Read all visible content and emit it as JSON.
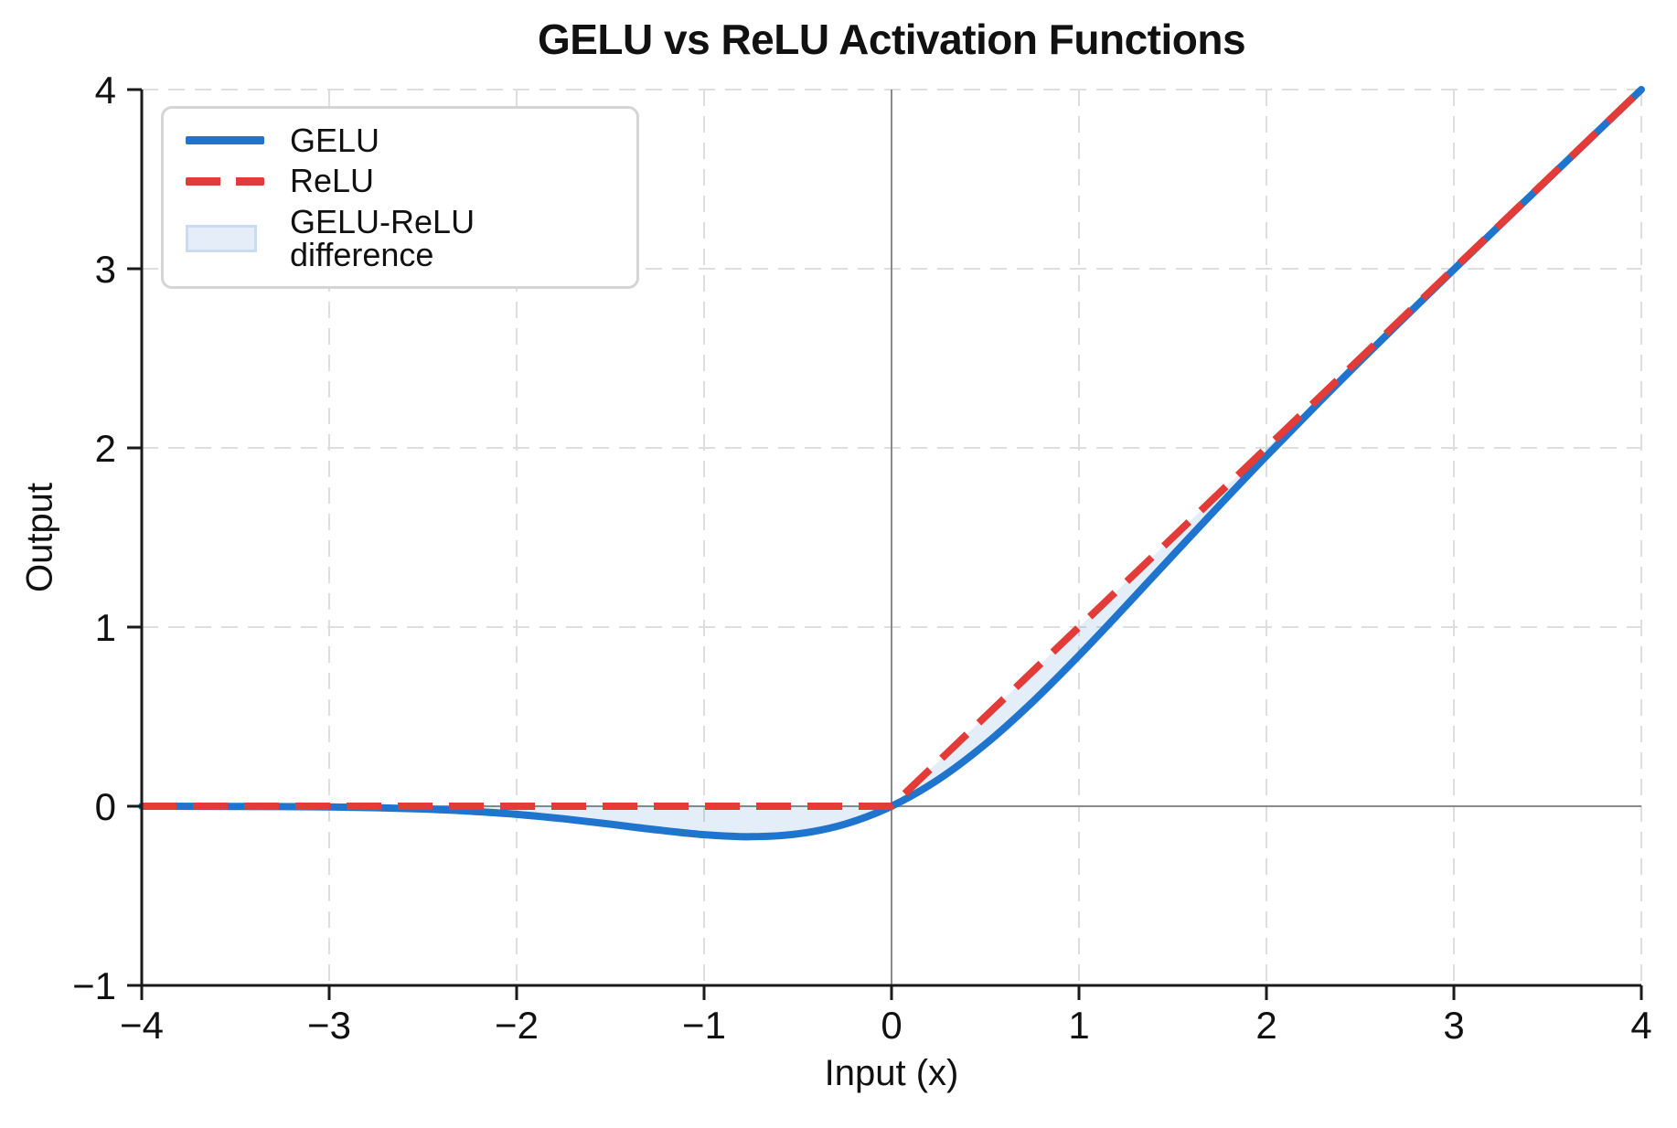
{
  "figure": {
    "title": "GELU vs ReLU Activation Functions",
    "xlabel": "Input (x)",
    "ylabel": "Output"
  },
  "legend": {
    "position": "upper left",
    "items": [
      {
        "label": "GELU",
        "swatch": "solid-line"
      },
      {
        "label": "ReLU",
        "swatch": "dashed-line"
      },
      {
        "label": "GELU-ReLU difference",
        "swatch": "filled-patch"
      }
    ]
  },
  "colors": {
    "gelu": "#1f74ce",
    "relu": "#e23b38",
    "fill": "#1f74ce",
    "fill_opacity": 0.12,
    "fill_legend_bg": "#e4edf8",
    "fill_legend_border": "#c9dcf2",
    "grid": "#dedede",
    "zero_line": "#8a8a8a",
    "axis": "#1a1a1a",
    "text": "#111111",
    "legend_border": "#d5d5d5"
  },
  "chart_data": {
    "type": "line",
    "title": "GELU vs ReLU Activation Functions",
    "xlabel": "Input (x)",
    "ylabel": "Output",
    "xlim": [
      -4,
      4
    ],
    "ylim": [
      -1,
      4
    ],
    "x_ticks": [
      -4,
      -3,
      -2,
      -1,
      0,
      1,
      2,
      3,
      4
    ],
    "x_tick_labels": [
      "−4",
      "−3",
      "−2",
      "−1",
      "0",
      "1",
      "2",
      "3",
      "4"
    ],
    "y_ticks": [
      -1,
      0,
      1,
      2,
      3,
      4
    ],
    "y_tick_labels": [
      "−1",
      "0",
      "1",
      "2",
      "3",
      "4"
    ],
    "grid": true,
    "grid_style": "dashed",
    "legend_position": "upper left",
    "x": [
      -4,
      -3.75,
      -3.5,
      -3.25,
      -3,
      -2.75,
      -2.5,
      -2.25,
      -2,
      -1.75,
      -1.5,
      -1.25,
      -1,
      -0.75,
      -0.5,
      -0.25,
      0,
      0.25,
      0.5,
      0.75,
      1,
      1.25,
      1.5,
      1.75,
      2,
      2.25,
      2.5,
      2.75,
      3,
      3.25,
      3.5,
      3.75,
      4
    ],
    "series": [
      {
        "name": "GELU",
        "line_style": "solid",
        "values": [
          -0.0001,
          -0.0003,
          -0.0008,
          -0.0019,
          -0.004,
          -0.0082,
          -0.0155,
          -0.0275,
          -0.0455,
          -0.0701,
          -0.1002,
          -0.1321,
          -0.1587,
          -0.17,
          -0.1543,
          -0.1003,
          0,
          0.1497,
          0.3457,
          0.58,
          0.8413,
          1.1179,
          1.3998,
          1.6799,
          1.9545,
          2.2225,
          2.4845,
          2.7418,
          2.996,
          3.2481,
          3.4992,
          3.7497,
          3.9999
        ]
      },
      {
        "name": "ReLU",
        "line_style": "dashed",
        "values": [
          0,
          0,
          0,
          0,
          0,
          0,
          0,
          0,
          0,
          0,
          0,
          0,
          0,
          0,
          0,
          0,
          0,
          0.25,
          0.5,
          0.75,
          1,
          1.25,
          1.5,
          1.75,
          2,
          2.25,
          2.5,
          2.75,
          3,
          3.25,
          3.5,
          3.75,
          4
        ]
      }
    ],
    "fill_between": {
      "label": "GELU-ReLU difference",
      "between": [
        "GELU",
        "ReLU"
      ]
    }
  }
}
